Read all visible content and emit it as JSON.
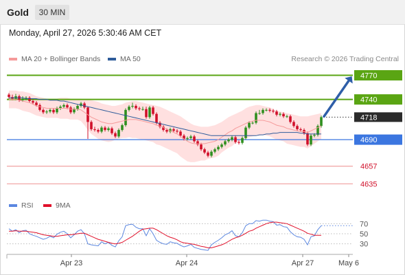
{
  "header": {
    "symbol": "Gold",
    "timeframe": "30 MIN"
  },
  "datetime": "Monday, April 27, 2026 5:30:46 AM CET",
  "legend": {
    "ma20": "MA 20 + Bollinger Bands",
    "ma50": "MA 50",
    "credit": "Research © 2026 Trading Central",
    "ma20_color": "#f59a9a",
    "ma50_color": "#2e5b9a"
  },
  "rsi_legend": {
    "rsi": "RSI",
    "ma9": "9MA",
    "rsi_color": "#5b87e0",
    "ma9_color": "#e0102a"
  },
  "colors": {
    "up": "#2f8f1f",
    "down": "#d0102a",
    "band": "#ffd6d6",
    "resistance": "#5aa513",
    "pivot": "#3b76e0",
    "support": "#f0a0a0"
  },
  "chart_data": {
    "type": "candlestick",
    "title": "Gold",
    "timeframe": "30 MIN",
    "ylim": [
      4620,
      4785
    ],
    "x_labels": [
      "Apr 23",
      "Apr 24",
      "Apr 27",
      "May 6"
    ],
    "levels": [
      {
        "value": 4770,
        "label": "4770",
        "type": "resistance"
      },
      {
        "value": 4740,
        "label": "4740",
        "type": "resistance"
      },
      {
        "value": 4718,
        "label": "4718",
        "type": "current"
      },
      {
        "value": 4690,
        "label": "4690",
        "type": "pivot"
      },
      {
        "value": 4657,
        "label": "4657",
        "type": "support"
      },
      {
        "value": 4635,
        "label": "4635",
        "type": "support"
      }
    ],
    "current_price": 4718,
    "forecast": {
      "from": 4718,
      "to": 4770,
      "direction": "up"
    },
    "close": [
      4743,
      4741,
      4744,
      4739,
      4741,
      4742,
      4738,
      4736,
      4733,
      4727,
      4724,
      4725,
      4727,
      4724,
      4729,
      4731,
      4733,
      4730,
      4724,
      4728,
      4732,
      4735,
      4730,
      4712,
      4703,
      4702,
      4700,
      4705,
      4702,
      4704,
      4698,
      4694,
      4702,
      4708,
      4727,
      4731,
      4732,
      4729,
      4728,
      4728,
      4718,
      4730,
      4722,
      4711,
      4706,
      4702,
      4700,
      4703,
      4701,
      4700,
      4695,
      4691,
      4692,
      4694,
      4688,
      4684,
      4678,
      4674,
      4670,
      4675,
      4678,
      4681,
      4684,
      4688,
      4690,
      4693,
      4687,
      4686,
      4692,
      4705,
      4711,
      4711,
      4723,
      4723,
      4727,
      4727,
      4726,
      4725,
      4721,
      4722,
      4719,
      4719,
      4712,
      4707,
      4703,
      4702,
      4698,
      4684,
      4695,
      4696,
      4707,
      4718
    ],
    "open": [
      4746,
      4743,
      4741,
      4744,
      4739,
      4741,
      4742,
      4738,
      4736,
      4733,
      4727,
      4724,
      4725,
      4727,
      4724,
      4729,
      4731,
      4733,
      4730,
      4724,
      4728,
      4732,
      4735,
      4730,
      4712,
      4703,
      4702,
      4700,
      4705,
      4702,
      4704,
      4698,
      4694,
      4702,
      4708,
      4727,
      4731,
      4732,
      4729,
      4728,
      4728,
      4718,
      4730,
      4722,
      4711,
      4706,
      4702,
      4700,
      4703,
      4701,
      4700,
      4695,
      4691,
      4692,
      4694,
      4688,
      4684,
      4678,
      4674,
      4670,
      4675,
      4678,
      4681,
      4684,
      4688,
      4690,
      4693,
      4687,
      4686,
      4692,
      4705,
      4711,
      4711,
      4723,
      4723,
      4727,
      4727,
      4726,
      4725,
      4721,
      4722,
      4719,
      4719,
      4712,
      4707,
      4703,
      4702,
      4698,
      4684,
      4695,
      4696,
      4707
    ],
    "high": [
      4748,
      4746,
      4747,
      4746,
      4744,
      4744,
      4744,
      4740,
      4738,
      4735,
      4729,
      4727,
      4729,
      4729,
      4731,
      4733,
      4735,
      4735,
      4732,
      4730,
      4734,
      4737,
      4737,
      4731,
      4714,
      4706,
      4704,
      4707,
      4707,
      4706,
      4706,
      4700,
      4704,
      4710,
      4729,
      4733,
      4736,
      4734,
      4731,
      4731,
      4731,
      4732,
      4732,
      4724,
      4713,
      4708,
      4704,
      4705,
      4705,
      4703,
      4702,
      4697,
      4694,
      4696,
      4696,
      4690,
      4686,
      4680,
      4676,
      4677,
      4680,
      4683,
      4686,
      4690,
      4692,
      4695,
      4695,
      4689,
      4694,
      4707,
      4713,
      4713,
      4725,
      4727,
      4729,
      4729,
      4729,
      4728,
      4727,
      4724,
      4724,
      4721,
      4721,
      4714,
      4709,
      4705,
      4704,
      4700,
      4697,
      4698,
      4709,
      4720
    ],
    "low": [
      4741,
      4739,
      4739,
      4737,
      4737,
      4739,
      4736,
      4734,
      4731,
      4725,
      4722,
      4722,
      4723,
      4722,
      4722,
      4727,
      4729,
      4728,
      4722,
      4722,
      4726,
      4730,
      4728,
      4691,
      4701,
      4700,
      4698,
      4698,
      4700,
      4700,
      4696,
      4692,
      4692,
      4700,
      4706,
      4725,
      4729,
      4727,
      4726,
      4726,
      4716,
      4716,
      4720,
      4709,
      4704,
      4700,
      4698,
      4698,
      4699,
      4698,
      4693,
      4689,
      4689,
      4690,
      4686,
      4682,
      4676,
      4672,
      4668,
      4668,
      4673,
      4676,
      4679,
      4682,
      4686,
      4688,
      4685,
      4684,
      4684,
      4690,
      4703,
      4709,
      4709,
      4721,
      4721,
      4725,
      4724,
      4723,
      4719,
      4719,
      4717,
      4717,
      4710,
      4705,
      4701,
      4700,
      4696,
      4682,
      4682,
      4693,
      4694,
      4705
    ],
    "ma20": [
      4740,
      4740,
      4740,
      4739,
      4738,
      4737,
      4736,
      4734,
      4732,
      4731,
      4730,
      4729,
      4729,
      4729,
      4729,
      4729,
      4729,
      4729,
      4728,
      4728,
      4728,
      4727,
      4724,
      4721,
      4718,
      4716,
      4714,
      4712,
      4711,
      4710,
      4710,
      4711,
      4712,
      4713,
      4714,
      4715,
      4715,
      4715,
      4714,
      4713,
      4712,
      4711,
      4710,
      4708,
      4707,
      4705,
      4703,
      4701,
      4699,
      4697,
      4694,
      4691,
      4688,
      4686,
      4685,
      4685,
      4685,
      4685,
      4686,
      4687,
      4688,
      4690,
      4693,
      4696,
      4699,
      4701,
      4704,
      4706,
      4708,
      4710,
      4712,
      4713,
      4714,
      4714,
      4714,
      4713,
      4712,
      4710,
      4708,
      4707,
      4706,
      4704,
      4703,
      4702,
      4701,
      4700,
      4700,
      4699,
      4701,
      4703,
      4705,
      4707
    ],
    "bb_upper": [
      4751,
      4751,
      4751,
      4750,
      4750,
      4749,
      4748,
      4746,
      4744,
      4743,
      4742,
      4741,
      4741,
      4741,
      4741,
      4742,
      4742,
      4742,
      4741,
      4741,
      4741,
      4741,
      4740,
      4740,
      4739,
      4738,
      4737,
      4735,
      4734,
      4733,
      4732,
      4732,
      4733,
      4734,
      4736,
      4737,
      4738,
      4738,
      4737,
      4736,
      4735,
      4734,
      4733,
      4732,
      4731,
      4729,
      4727,
      4725,
      4723,
      4721,
      4719,
      4716,
      4713,
      4710,
      4708,
      4707,
      4706,
      4706,
      4706,
      4707,
      4708,
      4710,
      4712,
      4715,
      4718,
      4720,
      4722,
      4724,
      4726,
      4729,
      4731,
      4732,
      4733,
      4733,
      4732,
      4731,
      4730,
      4728,
      4726,
      4725,
      4724,
      4723,
      4722,
      4721,
      4720,
      4719,
      4719,
      4719,
      4720,
      4721,
      4722,
      4723
    ],
    "bb_lower": [
      4729,
      4729,
      4729,
      4728,
      4726,
      4725,
      4724,
      4722,
      4720,
      4719,
      4718,
      4717,
      4717,
      4717,
      4717,
      4716,
      4716,
      4716,
      4715,
      4715,
      4715,
      4713,
      4708,
      4702,
      4697,
      4694,
      4691,
      4689,
      4688,
      4687,
      4688,
      4690,
      4691,
      4692,
      4692,
      4693,
      4692,
      4692,
      4691,
      4690,
      4689,
      4688,
      4687,
      4684,
      4683,
      4681,
      4679,
      4677,
      4675,
      4673,
      4669,
      4666,
      4663,
      4662,
      4662,
      4663,
      4664,
      4664,
      4666,
      4667,
      4668,
      4670,
      4674,
      4677,
      4680,
      4682,
      4686,
      4688,
      4690,
      4691,
      4693,
      4694,
      4695,
      4695,
      4696,
      4695,
      4694,
      4692,
      4690,
      4689,
      4688,
      4685,
      4684,
      4683,
      4682,
      4681,
      4681,
      4679,
      4682,
      4685,
      4688,
      4691
    ],
    "ma50": [
      4742,
      4742,
      4742,
      4742,
      4742,
      4741,
      4741,
      4741,
      4741,
      4740,
      4740,
      4740,
      4739,
      4739,
      4739,
      4738,
      4738,
      4737,
      4736,
      4735,
      4734,
      4733,
      4732,
      4731,
      4730,
      4729,
      4728,
      4727,
      4726,
      4725,
      4724,
      4723,
      4722,
      4721,
      4720,
      4719,
      4718,
      4717,
      4716,
      4715,
      4714,
      4713,
      4712,
      4711,
      4710,
      4709,
      4708,
      4707,
      4706,
      4705,
      4704,
      4703,
      4702,
      4701,
      4700,
      4699,
      4698,
      4697,
      4696,
      4695,
      4695,
      4695,
      4695,
      4695,
      4695,
      4695,
      4695,
      4695,
      4695,
      4695,
      4695,
      4695,
      4695,
      4696,
      4696,
      4697,
      4697,
      4698,
      4698,
      4699,
      4699,
      4699,
      4699,
      4699,
      4699,
      4698,
      4698,
      4697,
      4697,
      4697,
      4697,
      4697
    ],
    "rsi": {
      "ylim": [
        20,
        80
      ],
      "ticks": [
        70,
        50,
        30
      ],
      "values": [
        60,
        55,
        58,
        52,
        56,
        57,
        50,
        47,
        45,
        42,
        39,
        41,
        45,
        42,
        49,
        53,
        55,
        50,
        42,
        48,
        55,
        58,
        50,
        30,
        28,
        27,
        26,
        34,
        30,
        33,
        27,
        24,
        36,
        44,
        66,
        68,
        69,
        63,
        60,
        60,
        46,
        60,
        50,
        37,
        33,
        30,
        29,
        34,
        32,
        31,
        27,
        24,
        26,
        29,
        23,
        21,
        19,
        18,
        17,
        28,
        33,
        37,
        42,
        48,
        51,
        56,
        46,
        44,
        52,
        66,
        70,
        70,
        76,
        75,
        77,
        77,
        75,
        74,
        67,
        68,
        64,
        63,
        54,
        48,
        44,
        43,
        39,
        28,
        44,
        46,
        58,
        66
      ],
      "ma9": [
        55,
        55,
        56,
        55,
        55,
        55,
        54,
        53,
        52,
        50,
        48,
        47,
        46,
        45,
        45,
        46,
        47,
        48,
        48,
        49,
        50,
        51,
        51,
        48,
        45,
        42,
        39,
        37,
        35,
        33,
        31,
        30,
        31,
        33,
        37,
        41,
        45,
        50,
        55,
        59,
        60,
        61,
        61,
        58,
        54,
        50,
        46,
        43,
        41,
        38,
        34,
        32,
        31,
        30,
        29,
        27,
        25,
        24,
        22,
        22,
        24,
        26,
        28,
        31,
        35,
        39,
        42,
        44,
        47,
        51,
        55,
        57,
        61,
        64,
        67,
        70,
        72,
        73,
        73,
        72,
        71,
        70,
        67,
        64,
        61,
        58,
        55,
        51,
        49,
        47,
        47,
        47
      ]
    }
  }
}
